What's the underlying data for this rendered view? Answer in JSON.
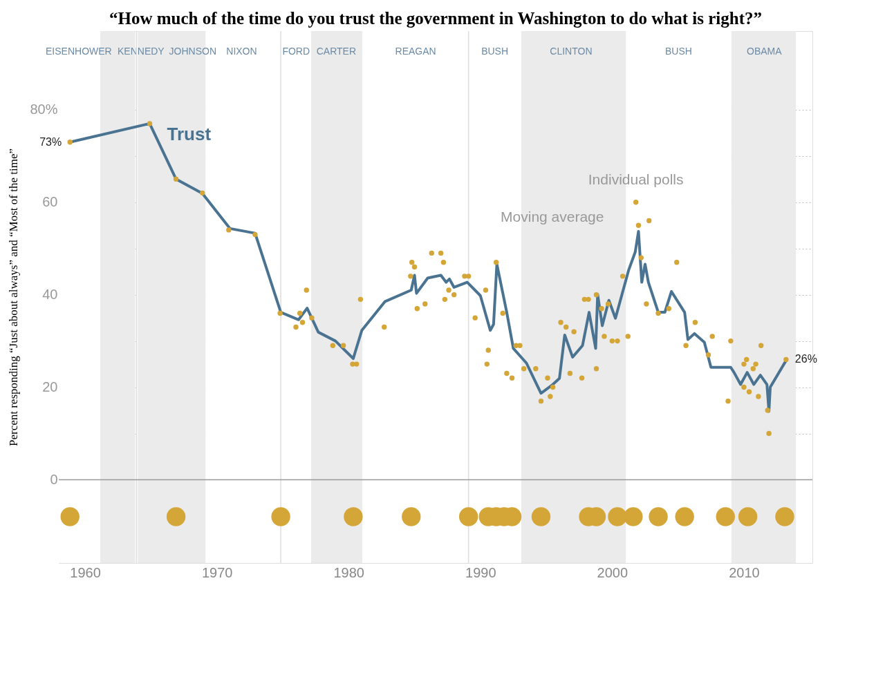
{
  "chart_data": {
    "type": "line",
    "title": "“How much of the time do you trust the government in Washington to do what is right?”",
    "ylabel": "Percent responding “Just about always” and “Most of the time”",
    "xlim": [
      1958,
      2015.2
    ],
    "xticks": [
      1960,
      1970,
      1980,
      1990,
      2000,
      2010
    ],
    "ylim": [
      -18,
      97
    ],
    "yticks": [
      0,
      {
        "value": 10,
        "label": null
      },
      20,
      {
        "value": 30,
        "label": null
      },
      40,
      {
        "value": 50,
        "label": null
      },
      60,
      {
        "value": 70,
        "label": null
      },
      {
        "value": 80,
        "label": "80%"
      }
    ],
    "grid": "y",
    "legend": false,
    "line_style": "solid",
    "bands": [
      {
        "axis": "x",
        "from": 1958,
        "to": 1961.15,
        "label": "EISENHOWER",
        "color": "#ffffff"
      },
      {
        "axis": "x",
        "from": 1961.15,
        "to": 1963.8,
        "label": "KENNEDY",
        "color": "#ebebeb"
      },
      {
        "axis": "x",
        "from": 1964,
        "to": 1969.15,
        "label": "JOHNSON",
        "color": "#ebebeb"
      },
      {
        "axis": "x",
        "from": 1969.15,
        "to": 1974.85,
        "label": "NIXON",
        "color": "#ffffff"
      },
      {
        "axis": "x",
        "from": 1974.85,
        "to": 1977.15,
        "label": "FORD",
        "color": "#ffffff"
      },
      {
        "axis": "x",
        "from": 1977.15,
        "to": 1981.05,
        "label": "CARTER",
        "color": "#ebebeb"
      },
      {
        "axis": "x",
        "from": 1981.05,
        "to": 1989.1,
        "label": "REAGAN",
        "color": "#ffffff"
      },
      {
        "axis": "x",
        "from": 1989.1,
        "to": 1993.1,
        "label": "BUSH",
        "color": "#ffffff"
      },
      {
        "axis": "x",
        "from": 1993.1,
        "to": 2001.05,
        "label": "CLINTON",
        "color": "#ebebeb"
      },
      {
        "axis": "x",
        "from": 2001.05,
        "to": 2009.05,
        "label": "BUSH",
        "color": "#ffffff"
      },
      {
        "axis": "x",
        "from": 2009.05,
        "to": 2013.95,
        "label": "OBAMA",
        "color": "#ebebeb"
      }
    ],
    "ref_lines": [
      {
        "axis": "x",
        "value": 1963.9,
        "color": "#dddddd"
      },
      {
        "axis": "x",
        "value": 1974.85,
        "color": "#dddddd"
      },
      {
        "axis": "x",
        "value": 1989.1,
        "color": "#dddddd"
      },
      {
        "axis": "y",
        "value": 0,
        "color": "#999999"
      }
    ],
    "annotations": [
      {
        "text": "Individual polls",
        "x": 2001.8,
        "y": 60
      },
      {
        "text": "Moving average",
        "x": 2002,
        "y": 53.7
      }
    ],
    "series": [
      {
        "name": "Trust",
        "color": "#4a7391",
        "x": [
          1958.85,
          1964.9,
          1966.9,
          1968.9,
          1971,
          1972.9,
          1974.85,
          1976.2,
          1976.85,
          1977.7,
          1979,
          1980.35,
          1981,
          1982.75,
          1984.75,
          1985,
          1985.15,
          1986,
          1987,
          1987.4,
          1987.65,
          1988,
          1989,
          1990,
          1990.75,
          1991,
          1991.25,
          1992,
          1992.5,
          1993.5,
          1994.6,
          1995.5,
          1996,
          1996.4,
          1997,
          1997.75,
          1998.25,
          1998.75,
          1998.9,
          1999.25,
          1999.75,
          2000.25,
          2000.75,
          2001.25,
          2001.75,
          2002,
          2002.25,
          2002.5,
          2002.75,
          2003.5,
          2004,
          2004.5,
          2005.5,
          2005.75,
          2006.25,
          2007,
          2007.5,
          2009,
          2009.25,
          2009.75,
          2010.25,
          2010.75,
          2011.25,
          2011.75,
          2011.9,
          2012,
          2013.25
        ],
        "values": [
          73,
          77,
          65,
          61.9,
          54.3,
          53.3,
          36.2,
          34.6,
          37.1,
          31.9,
          30,
          26.2,
          32.3,
          38.5,
          41,
          44.2,
          40.3,
          43.6,
          44.2,
          42.7,
          43.4,
          41.6,
          42.7,
          39.8,
          32.3,
          33.6,
          46.6,
          36.2,
          28.4,
          25.2,
          18.7,
          20.6,
          21.9,
          31.3,
          26.5,
          29,
          36.2,
          28.4,
          40.1,
          33.3,
          38.8,
          34.9,
          40.1,
          45.3,
          49.2,
          53.7,
          42.7,
          46.6,
          42.7,
          36.2,
          36.2,
          40.7,
          36.2,
          30.3,
          31.6,
          29.7,
          24.3,
          24.3,
          23.2,
          20.6,
          23.2,
          20.6,
          22.6,
          20.6,
          14.8,
          20,
          26
        ],
        "value_labels": [
          "73%",
          null,
          null,
          null,
          null,
          null,
          null,
          null,
          null,
          null,
          null,
          null,
          null,
          null,
          null,
          null,
          null,
          null,
          null,
          null,
          null,
          null,
          null,
          null,
          null,
          null,
          null,
          null,
          null,
          null,
          null,
          null,
          null,
          null,
          null,
          null,
          null,
          null,
          null,
          null,
          null,
          null,
          null,
          null,
          null,
          null,
          null,
          null,
          null,
          null,
          null,
          null,
          null,
          null,
          null,
          null,
          null,
          null,
          null,
          null,
          null,
          null,
          null,
          null,
          null,
          null,
          "26%"
        ]
      },
      {
        "type": "scatter",
        "color": "#d4a537",
        "x": [
          1958.85,
          1964.9,
          1966.9,
          1968.9,
          1970.9,
          1972.9,
          1974.8,
          1976,
          1976.3,
          1976.5,
          1976.8,
          1977.2,
          1978.8,
          1979.6,
          1980.3,
          1980.6,
          1980.9,
          1982.7,
          1984.7,
          1984.8,
          1985,
          1985.2,
          1985.8,
          1986.3,
          1987,
          1987.2,
          1987.3,
          1987.6,
          1988,
          1988.8,
          1989.1,
          1989.6,
          1990.4,
          1990.6,
          1990.5,
          1991.2,
          1991.7,
          1992,
          1992.4,
          1992.7,
          1993,
          1993.3,
          1994.2,
          1994.6,
          1995.1,
          1995.3,
          1995.5,
          1996.1,
          1996.5,
          1996.8,
          1997.1,
          1997.7,
          1997.9,
          1998.2,
          1998.8,
          1998.8,
          1999.2,
          1999.4,
          1999.7,
          2000,
          2000.4,
          2000.8,
          2001.2,
          2001.8,
          2002,
          2002.2,
          2002.6,
          2002.8,
          2003.5,
          2004.3,
          2004.9,
          2005.6,
          2006.3,
          2007.3,
          2007.6,
          2008.8,
          2009,
          2010,
          2010,
          2010.2,
          2010.4,
          2010.7,
          2010.9,
          2011.1,
          2011.3,
          2011.8,
          2011.9,
          2013.2
        ],
        "values": [
          73,
          77,
          65,
          62,
          54,
          53,
          36,
          33,
          36,
          34,
          41,
          35,
          29,
          29,
          25,
          25,
          39,
          33,
          44,
          47,
          46,
          37,
          38,
          49,
          49,
          47,
          39,
          41,
          40,
          44,
          44,
          35,
          41,
          28,
          25,
          47,
          36,
          23,
          22,
          29,
          29,
          24,
          24,
          17,
          22,
          18,
          20,
          34,
          33,
          23,
          32,
          22,
          39,
          39,
          40,
          24,
          37,
          31,
          38,
          30,
          30,
          44,
          31,
          60,
          55,
          48,
          38,
          56,
          36,
          37,
          47,
          29,
          34,
          27,
          31,
          17,
          30,
          25,
          20,
          26,
          19,
          24,
          25,
          18,
          29,
          15,
          10,
          26
        ]
      },
      {
        "type": "bubble",
        "color": "#d4a537",
        "x": [
          1958.85,
          1966.9,
          1974.85,
          1980.35,
          1984.75,
          1989.1,
          1990.6,
          1991.2,
          1991.8,
          1992.4,
          1994.6,
          1998.2,
          1998.8,
          2000.4,
          2001.6,
          2003.5,
          2005.5,
          2008.6,
          2010.3,
          2013.1
        ],
        "values": [
          -8,
          -8,
          -8,
          -8,
          -8,
          -8,
          -8,
          -8,
          -8,
          -8,
          -8,
          -8,
          -8,
          -8,
          -8,
          -8,
          -8,
          -8,
          -8,
          -8
        ],
        "sizes": [
          1,
          1,
          1,
          1,
          1,
          1,
          1,
          1,
          1,
          1,
          1,
          1,
          1,
          1,
          1,
          1,
          1,
          1,
          1,
          1
        ]
      }
    ]
  }
}
